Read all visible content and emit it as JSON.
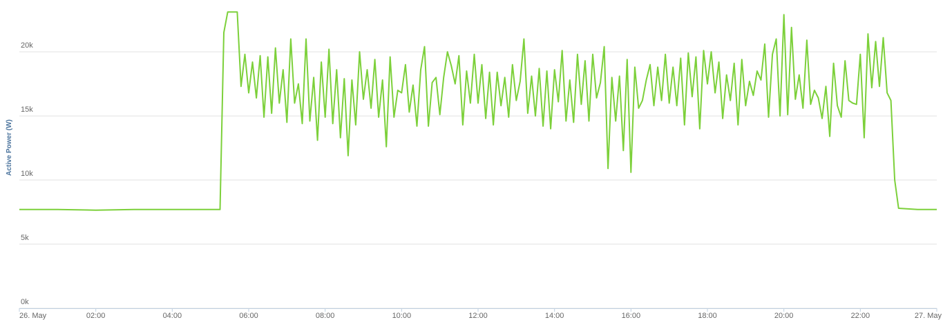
{
  "chart_data": {
    "type": "line",
    "y_axis_label": "Active Power (W)",
    "xlim": [
      0,
      24
    ],
    "xticks": [
      {
        "value": 0,
        "label": "26. May"
      },
      {
        "value": 2,
        "label": "02:00"
      },
      {
        "value": 4,
        "label": "04:00"
      },
      {
        "value": 6,
        "label": "06:00"
      },
      {
        "value": 8,
        "label": "08:00"
      },
      {
        "value": 10,
        "label": "10:00"
      },
      {
        "value": 12,
        "label": "12:00"
      },
      {
        "value": 14,
        "label": "14:00"
      },
      {
        "value": 16,
        "label": "16:00"
      },
      {
        "value": 18,
        "label": "18:00"
      },
      {
        "value": 20,
        "label": "20:00"
      },
      {
        "value": 22,
        "label": "22:00"
      },
      {
        "value": 24,
        "label": "27. May"
      }
    ],
    "ylim": [
      0,
      23500
    ],
    "yticks": [
      {
        "value": 0,
        "label": "0k"
      },
      {
        "value": 5000,
        "label": "5k"
      },
      {
        "value": 10000,
        "label": "10k"
      },
      {
        "value": 15000,
        "label": "15k"
      },
      {
        "value": 20000,
        "label": "20k"
      }
    ],
    "grid": true,
    "x": [
      0,
      1,
      2,
      3,
      4,
      5.25,
      5.35,
      5.45,
      5.7,
      5.8,
      5.9,
      6,
      6.1,
      6.2,
      6.3,
      6.4,
      6.5,
      6.6,
      6.7,
      6.8,
      6.9,
      7,
      7.1,
      7.2,
      7.3,
      7.4,
      7.5,
      7.6,
      7.7,
      7.8,
      7.9,
      8,
      8.1,
      8.2,
      8.3,
      8.4,
      8.5,
      8.6,
      8.7,
      8.8,
      8.9,
      9,
      9.1,
      9.2,
      9.3,
      9.4,
      9.5,
      9.6,
      9.7,
      9.8,
      9.9,
      10,
      10.1,
      10.2,
      10.3,
      10.4,
      10.5,
      10.6,
      10.7,
      10.8,
      10.9,
      11,
      11.1,
      11.2,
      11.3,
      11.4,
      11.5,
      11.6,
      11.7,
      11.8,
      11.9,
      12,
      12.1,
      12.2,
      12.3,
      12.4,
      12.5,
      12.6,
      12.7,
      12.8,
      12.9,
      13,
      13.1,
      13.2,
      13.3,
      13.4,
      13.5,
      13.6,
      13.7,
      13.8,
      13.9,
      14,
      14.1,
      14.2,
      14.3,
      14.4,
      14.5,
      14.6,
      14.7,
      14.8,
      14.9,
      15,
      15.1,
      15.2,
      15.3,
      15.4,
      15.5,
      15.6,
      15.7,
      15.8,
      15.9,
      16,
      16.1,
      16.2,
      16.3,
      16.4,
      16.5,
      16.6,
      16.7,
      16.8,
      16.9,
      17,
      17.1,
      17.2,
      17.3,
      17.4,
      17.5,
      17.6,
      17.7,
      17.8,
      17.9,
      18,
      18.1,
      18.2,
      18.3,
      18.4,
      18.5,
      18.6,
      18.7,
      18.8,
      18.9,
      19,
      19.1,
      19.2,
      19.3,
      19.4,
      19.5,
      19.6,
      19.7,
      19.8,
      19.9,
      20,
      20.1,
      20.2,
      20.3,
      20.4,
      20.5,
      20.6,
      20.7,
      20.8,
      20.9,
      21,
      21.1,
      21.2,
      21.3,
      21.4,
      21.5,
      21.6,
      21.7,
      21.8,
      21.9,
      22,
      22.1,
      22.2,
      22.3,
      22.4,
      22.5,
      22.6,
      22.7,
      22.8,
      22.9,
      23,
      23.5,
      24
    ],
    "series": [
      {
        "name": "Active Power",
        "color": "#7cd03a",
        "values": [
          7700,
          7700,
          7650,
          7700,
          7700,
          7700,
          21500,
          23100,
          23100,
          17300,
          19800,
          16800,
          19200,
          16400,
          19700,
          14900,
          19600,
          15200,
          20300,
          16000,
          18600,
          14500,
          21000,
          16000,
          17500,
          14400,
          21000,
          14600,
          18000,
          13100,
          19200,
          14900,
          20200,
          14400,
          18600,
          13300,
          17900,
          11900,
          17800,
          14300,
          20000,
          16300,
          18600,
          15600,
          19400,
          14900,
          17800,
          12600,
          19600,
          14900,
          17000,
          16800,
          19000,
          15300,
          17400,
          14200,
          18600,
          20400,
          14200,
          17600,
          18000,
          15100,
          18000,
          20000,
          18900,
          17500,
          19700,
          14300,
          18500,
          16000,
          19800,
          16000,
          19000,
          14800,
          18400,
          14300,
          18400,
          15800,
          18000,
          14900,
          19000,
          16200,
          17700,
          21000,
          15200,
          18100,
          15000,
          18700,
          14200,
          18500,
          14000,
          18600,
          16100,
          20100,
          14600,
          17800,
          14500,
          19800,
          15900,
          19300,
          14600,
          19800,
          16400,
          17600,
          20400,
          10900,
          18000,
          14600,
          18100,
          12300,
          19400,
          10600,
          18800,
          15600,
          16200,
          17800,
          19000,
          15800,
          18800,
          16200,
          19800,
          16000,
          18800,
          15800,
          19500,
          14300,
          19900,
          16500,
          19600,
          14000,
          20100,
          17500,
          20000,
          16800,
          19200,
          14800,
          18200,
          16200,
          19100,
          14300,
          19400,
          15800,
          17700,
          16600,
          18500,
          17800,
          20600,
          14900,
          19800,
          21000,
          15000,
          22900,
          15100,
          21900,
          16300,
          18200,
          15600,
          20900,
          15900,
          17000,
          16400,
          14800,
          17300,
          13400,
          19100,
          15800,
          14900,
          19300,
          16200,
          16000,
          15900,
          19800,
          13300,
          21400,
          17200,
          20800,
          17300,
          21100,
          16800,
          16200,
          10000,
          7800,
          7700,
          7700
        ]
      }
    ]
  }
}
